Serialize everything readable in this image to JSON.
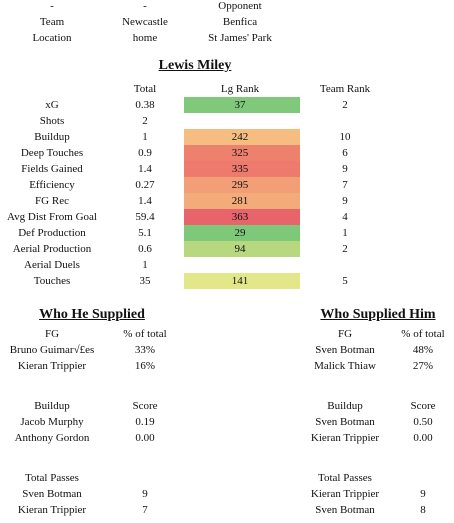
{
  "header": {
    "rows": [
      [
        "-",
        "-",
        "Opponent"
      ],
      [
        "Team",
        "Newcastle",
        "Benfica"
      ],
      [
        "Location",
        "home",
        "St James' Park"
      ]
    ]
  },
  "player": "Lewis Miley",
  "stats": {
    "columns": [
      "Total",
      "Lg Rank",
      "Team Rank"
    ],
    "rows": [
      {
        "label": "xG",
        "total": "0.38",
        "rank": "37",
        "team_rank": "2",
        "color": "#80c87a"
      },
      {
        "label": "Shots",
        "total": "2"
      },
      {
        "label": "Buildup",
        "total": "1",
        "rank": "242",
        "team_rank": "10",
        "color": "#f5bd80"
      },
      {
        "label": "Deep Touches",
        "total": "0.9",
        "rank": "325",
        "team_rank": "6",
        "color": "#ee806e"
      },
      {
        "label": "Fields Gained",
        "total": "1.4",
        "rank": "335",
        "team_rank": "9",
        "color": "#ed7a6d"
      },
      {
        "label": "Efficiency",
        "total": "0.27",
        "rank": "295",
        "team_rank": "7",
        "color": "#f29f77"
      },
      {
        "label": "FG Rec",
        "total": "1.4",
        "rank": "281",
        "team_rank": "9",
        "color": "#f3ab7a"
      },
      {
        "label": "Avg Dist From Goal",
        "total": "59.4",
        "rank": "363",
        "team_rank": "4",
        "color": "#e8646b"
      },
      {
        "label": "Def Production",
        "total": "5.1",
        "rank": "29",
        "team_rank": "1",
        "color": "#7ec87a"
      },
      {
        "label": "Aerial Production",
        "total": "0.6",
        "rank": "94",
        "team_rank": "2",
        "color": "#b8d880"
      },
      {
        "label": "Aerial Duels",
        "total": "1"
      },
      {
        "label": "Touches",
        "total": "35",
        "rank": "141",
        "team_rank": "5",
        "color": "#e3e78a"
      }
    ]
  },
  "sections": [
    {
      "title": "Who He Supplied",
      "tables": [
        {
          "columns": [
            "FG",
            "% of total"
          ],
          "rows": [
            [
              "Bruno Guimar√£es",
              "33%"
            ],
            [
              "Kieran Trippier",
              "16%"
            ]
          ]
        },
        {
          "columns": [
            "Buildup",
            "Score"
          ],
          "rows": [
            [
              "Jacob Murphy",
              "0.19"
            ],
            [
              "Anthony Gordon",
              "0.00"
            ]
          ]
        },
        {
          "columns": [
            "Total Passes"
          ],
          "rows": [
            [
              "Sven Botman",
              "9"
            ],
            [
              "Kieran Trippier",
              "7"
            ]
          ]
        }
      ]
    },
    {
      "title": "Who Supplied Him",
      "tables": [
        {
          "columns": [
            "FG",
            "% of total"
          ],
          "rows": [
            [
              "Sven Botman",
              "48%"
            ],
            [
              "Malick Thiaw",
              "27%"
            ]
          ]
        },
        {
          "columns": [
            "Buildup",
            "Score"
          ],
          "rows": [
            [
              "Sven Botman",
              "0.50"
            ],
            [
              "Kieran Trippier",
              "0.00"
            ]
          ]
        },
        {
          "columns": [
            "Total Passes"
          ],
          "rows": [
            [
              "Kieran Trippier",
              "9"
            ],
            [
              "Sven Botman",
              "8"
            ]
          ]
        }
      ]
    }
  ]
}
